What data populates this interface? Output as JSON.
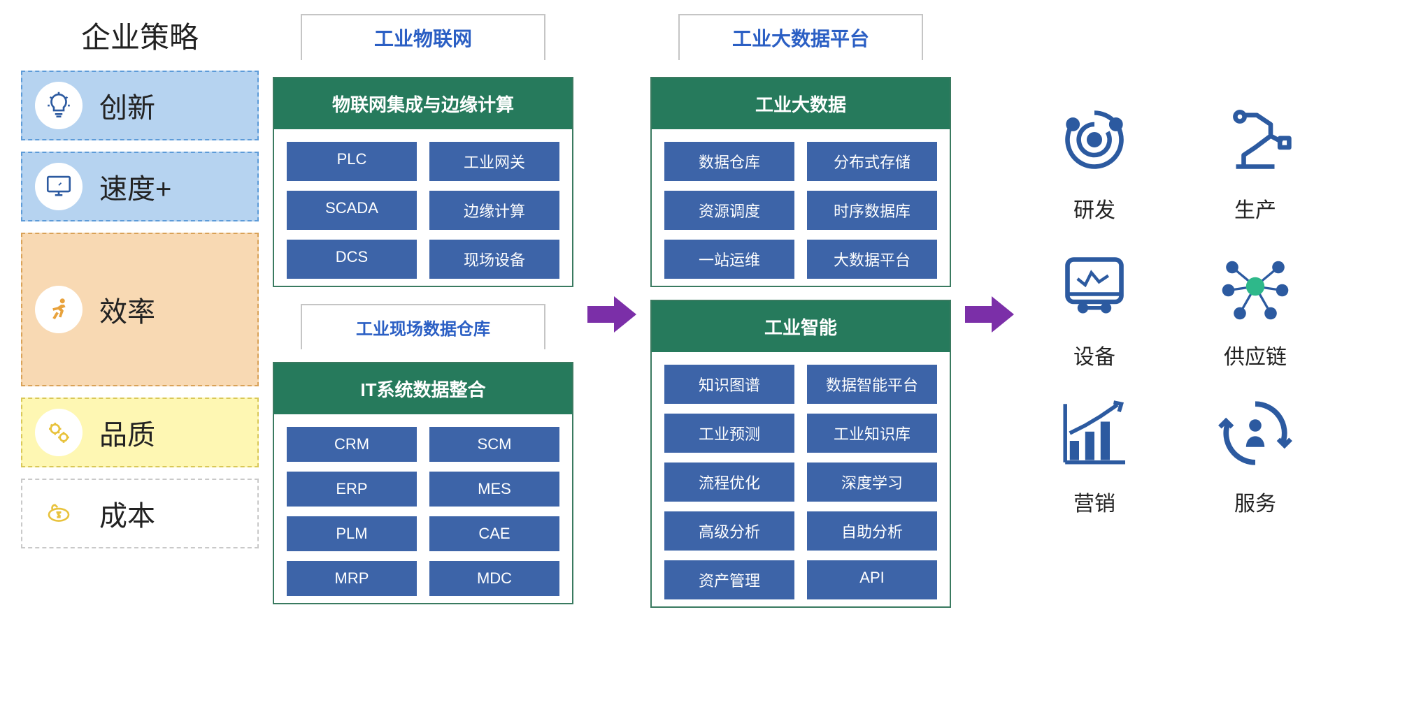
{
  "colors": {
    "blue_light": "#b6d3f0",
    "blue_border": "#5d9bd8",
    "orange_light": "#f8d9b3",
    "orange_border": "#d9a258",
    "yellow_light": "#fef7b3",
    "yellow_border": "#d9c858",
    "white_border": "#c9c9c9",
    "block_green": "#267a5c",
    "block_border": "#3a7a60",
    "chip_blue": "#3d64a8",
    "header_text": "#2b5fc4",
    "arrow_purple": "#7b2fa8",
    "icon_blue": "#2c5aa0",
    "icon_orange": "#e8a23c",
    "icon_yellow": "#e8c23c",
    "supply_green": "#2eb88a"
  },
  "left": {
    "title": "企业策略",
    "items": [
      {
        "label": "创新",
        "bg": "blue_light",
        "border": "blue_border",
        "icon": "lightbulb",
        "icon_color": "icon_blue"
      },
      {
        "label": "速度+",
        "bg": "blue_light",
        "border": "blue_border",
        "icon": "monitor",
        "icon_color": "icon_blue"
      },
      {
        "label": "效率",
        "bg": "orange_light",
        "border": "orange_border",
        "icon": "runner",
        "icon_color": "icon_orange",
        "tall": true
      },
      {
        "label": "品质",
        "bg": "yellow_light",
        "border": "yellow_border",
        "icon": "gears",
        "icon_color": "icon_yellow"
      },
      {
        "label": "成本",
        "bg": "white",
        "border": "white_border",
        "icon": "money",
        "icon_color": "icon_yellow"
      }
    ]
  },
  "col2": {
    "header": "工业物联网",
    "block1": {
      "title": "物联网集成与边缘计算",
      "chips": [
        "PLC",
        "工业网关",
        "SCADA",
        "边缘计算",
        "DCS",
        "现场设备"
      ]
    },
    "mini_header": "工业现场数据仓库",
    "block2": {
      "title": "IT系统数据整合",
      "chips": [
        "CRM",
        "SCM",
        "ERP",
        "MES",
        "PLM",
        "CAE",
        "MRP",
        "MDC"
      ]
    }
  },
  "col3": {
    "header": "工业大数据平台",
    "block1": {
      "title": "工业大数据",
      "chips": [
        "数据仓库",
        "分布式存储",
        "资源调度",
        "时序数据库",
        "一站运维",
        "大数据平台"
      ]
    },
    "block2": {
      "title": "工业智能",
      "chips": [
        "知识图谱",
        "数据智能平台",
        "工业预测",
        "工业知识库",
        "流程优化",
        "深度学习",
        "高级分析",
        "自助分析",
        "资产管理",
        "API"
      ]
    }
  },
  "right": {
    "items": [
      {
        "label": "研发",
        "icon": "swirl"
      },
      {
        "label": "生产",
        "icon": "robot"
      },
      {
        "label": "设备",
        "icon": "device"
      },
      {
        "label": "供应链",
        "icon": "network"
      },
      {
        "label": "营销",
        "icon": "chart"
      },
      {
        "label": "服务",
        "icon": "cycle"
      }
    ]
  }
}
